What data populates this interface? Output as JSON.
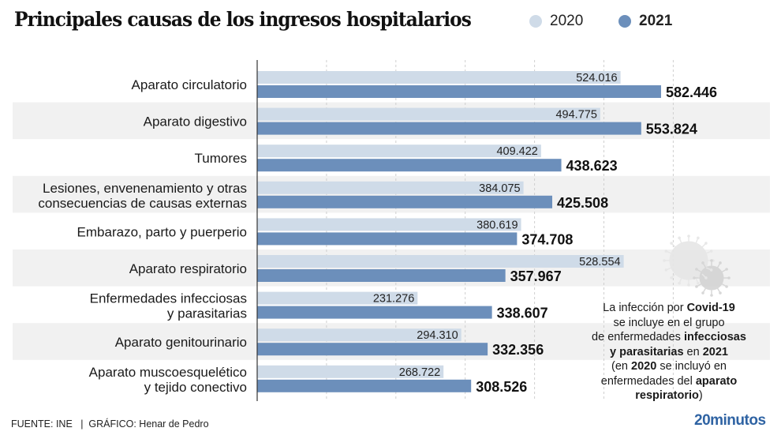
{
  "chart_data": {
    "type": "bar",
    "orientation": "horizontal",
    "title": "Principales causas de los ingresos hospitalarios",
    "xlabel": "",
    "ylabel": "",
    "xlim": [
      0,
      700000
    ],
    "grid": true,
    "grid_step": 100000,
    "legend_position": "top-right",
    "categories": [
      [
        "Aparato circulatorio"
      ],
      [
        "Aparato digestivo"
      ],
      [
        "Tumores"
      ],
      [
        "Lesiones, envenenamiento y otras",
        "consecuencias de causas externas"
      ],
      [
        "Embarazo, parto y puerperio"
      ],
      [
        "Aparato respiratorio"
      ],
      [
        "Enfermedades infecciosas",
        "y parasitarias"
      ],
      [
        "Aparato genitourinario"
      ],
      [
        "Aparato muscoesquelético",
        "y tejido conectivo"
      ]
    ],
    "series": [
      {
        "name": "2020",
        "color": "#cfdbe8",
        "values": [
          524016,
          494775,
          409422,
          384075,
          380619,
          528554,
          231276,
          294310,
          268722
        ],
        "labels": [
          "524.016",
          "494.775",
          "409.422",
          "384.075",
          "380.619",
          "528.554",
          "231.276",
          "294.310",
          "268.722"
        ]
      },
      {
        "name": "2021",
        "color": "#6c8fbb",
        "values": [
          582446,
          553824,
          438623,
          425508,
          374708,
          357967,
          338607,
          332356,
          308526
        ],
        "labels": [
          "582.446",
          "553.824",
          "438.623",
          "425.508",
          "374.708",
          "357.967",
          "338.607",
          "332.356",
          "308.526"
        ]
      }
    ],
    "annotation": "La infección por Covid-19 se incluye en el grupo de enfermedades infecciosas y parasitarias en 2021 (en 2020 se incluyó en enfermedades del aparato respiratorio)"
  },
  "legend": {
    "label_2020": "2020",
    "label_2021": "2021"
  },
  "note": {
    "p1": "La infección por ",
    "b1": "Covid-19",
    "p2": "se incluye en el grupo",
    "p3": "de enfermedades ",
    "b2": "infecciosas",
    "b3": "y parasitarias",
    "p4": " en ",
    "b4": "2021",
    "p5": "(en ",
    "b5": "2020",
    "p6": " se incluyó en",
    "p7": "enfermedades del ",
    "b6": "aparato",
    "b7": "respiratorio",
    "p8": ")"
  },
  "footer": {
    "source": "FUENTE: INE   |  GRÁFICO: Henar de Pedro"
  },
  "brand": "20minutos",
  "colors": {
    "band": "#f1f1f1",
    "light": "#cfdbe8",
    "dark": "#6c8fbb",
    "brand": "#2f63a3"
  }
}
